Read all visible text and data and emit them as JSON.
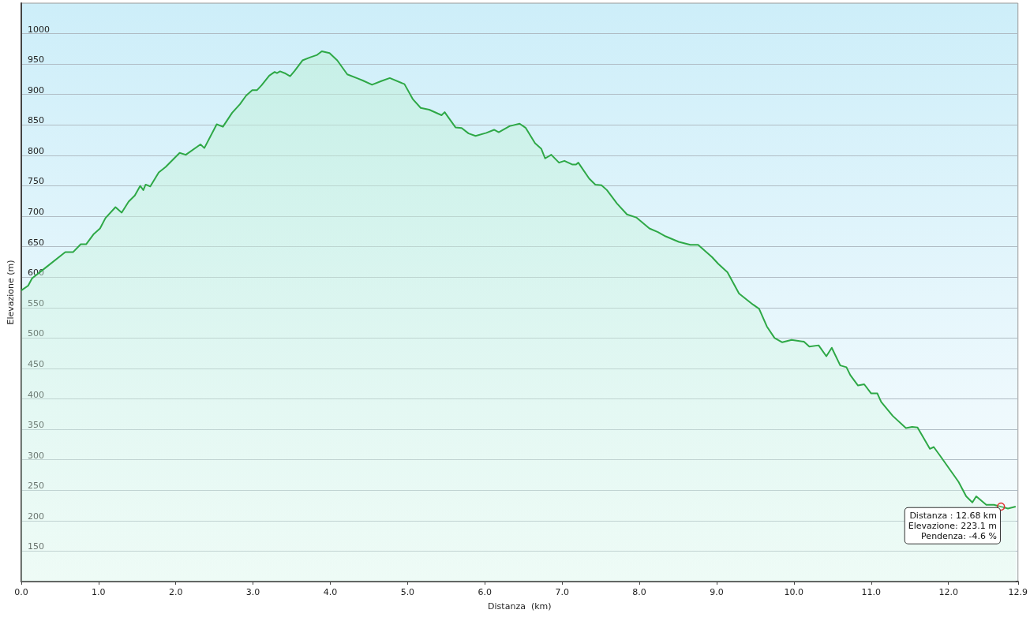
{
  "chart_data": {
    "type": "area",
    "xlabel": "Distanza  (km)",
    "ylabel": "Elevazione (m)",
    "x": [
      0,
      0.09,
      0.14,
      0.31,
      0.57,
      0.67,
      0.77,
      0.84,
      0.94,
      1.02,
      1.09,
      1.22,
      1.3,
      1.39,
      1.47,
      1.54,
      1.58,
      1.61,
      1.67,
      1.78,
      1.87,
      2.05,
      2.13,
      2.32,
      2.37,
      2.53,
      2.61,
      2.73,
      2.83,
      2.91,
      2.99,
      3.05,
      3.11,
      3.21,
      3.28,
      3.31,
      3.35,
      3.41,
      3.48,
      3.54,
      3.64,
      3.74,
      3.83,
      3.89,
      3.99,
      4.09,
      4.22,
      4.36,
      4.42,
      4.54,
      4.66,
      4.77,
      4.96,
      5.07,
      5.17,
      5.28,
      5.44,
      5.48,
      5.62,
      5.7,
      5.79,
      5.88,
      6.02,
      6.12,
      6.18,
      6.32,
      6.45,
      6.53,
      6.65,
      6.73,
      6.78,
      6.86,
      6.96,
      7.03,
      7.13,
      7.18,
      7.21,
      7.35,
      7.43,
      7.51,
      7.58,
      7.71,
      7.84,
      7.96,
      8.13,
      8.24,
      8.34,
      8.51,
      8.66,
      8.76,
      8.94,
      9.02,
      9.14,
      9.29,
      9.47,
      9.55,
      9.65,
      9.75,
      9.85,
      9.97,
      10.13,
      10.2,
      10.32,
      10.42,
      10.49,
      10.6,
      10.68,
      10.73,
      10.83,
      10.91,
      11.0,
      11.08,
      11.13,
      11.28,
      11.45,
      11.53,
      11.6,
      11.76,
      11.81,
      11.89,
      12.13,
      12.23,
      12.31,
      12.36,
      12.49,
      12.59,
      12.68,
      12.77,
      12.87
    ],
    "series": [
      {
        "color": "#2ea846",
        "values": [
          578,
          586,
          598,
          615,
          641,
          641,
          654,
          654,
          671,
          680,
          697,
          715,
          706,
          724,
          734,
          750,
          743,
          752,
          749,
          772,
          781,
          804,
          801,
          818,
          812,
          851,
          847,
          870,
          884,
          898,
          907,
          907,
          915,
          931,
          937,
          935,
          938,
          935,
          930,
          939,
          956,
          961,
          965,
          971,
          968,
          956,
          933,
          926,
          923,
          916,
          922,
          927,
          917,
          892,
          878,
          875,
          866,
          871,
          846,
          845,
          836,
          832,
          837,
          842,
          838,
          848,
          852,
          845,
          820,
          811,
          795,
          801,
          788,
          791,
          785,
          785,
          788,
          762,
          752,
          751,
          743,
          721,
          703,
          698,
          680,
          674,
          667,
          658,
          653,
          653,
          633,
          622,
          608,
          573,
          555,
          548,
          519,
          500,
          493,
          497,
          494,
          486,
          488,
          470,
          484,
          455,
          452,
          439,
          422,
          424,
          409,
          409,
          395,
          372,
          352,
          354,
          353,
          318,
          321,
          307,
          264,
          240,
          230,
          240,
          226,
          226,
          223,
          220,
          223
        ]
      }
    ],
    "xlim": [
      0,
      12.9
    ],
    "xticks": [
      {
        "value": 0,
        "label": "0.0"
      },
      {
        "value": 1,
        "label": "1.0"
      },
      {
        "value": 2,
        "label": "2.0"
      },
      {
        "value": 3,
        "label": "3.0"
      },
      {
        "value": 4,
        "label": "4.0"
      },
      {
        "value": 5,
        "label": "5.0"
      },
      {
        "value": 6,
        "label": "6.0"
      },
      {
        "value": 7,
        "label": "7.0"
      },
      {
        "value": 8,
        "label": "8.0"
      },
      {
        "value": 9,
        "label": "9.0"
      },
      {
        "value": 10,
        "label": "10.0"
      },
      {
        "value": 11,
        "label": "11.0"
      },
      {
        "value": 12,
        "label": "12.0"
      },
      {
        "value": 12.9,
        "label": "12.9"
      }
    ],
    "ylim": [
      100,
      1050
    ],
    "yticks": [
      150,
      200,
      250,
      300,
      350,
      400,
      450,
      500,
      550,
      600,
      650,
      700,
      750,
      800,
      850,
      900,
      950,
      1000
    ],
    "grid": "y",
    "marker": "none",
    "line_style": "solid",
    "annotations": [
      {
        "text": "Distanza : 12.68 km\nElevazione: 223.1 m\nPendenza: -4.6 %",
        "x": 12.68,
        "y": 223.1
      }
    ]
  }
}
